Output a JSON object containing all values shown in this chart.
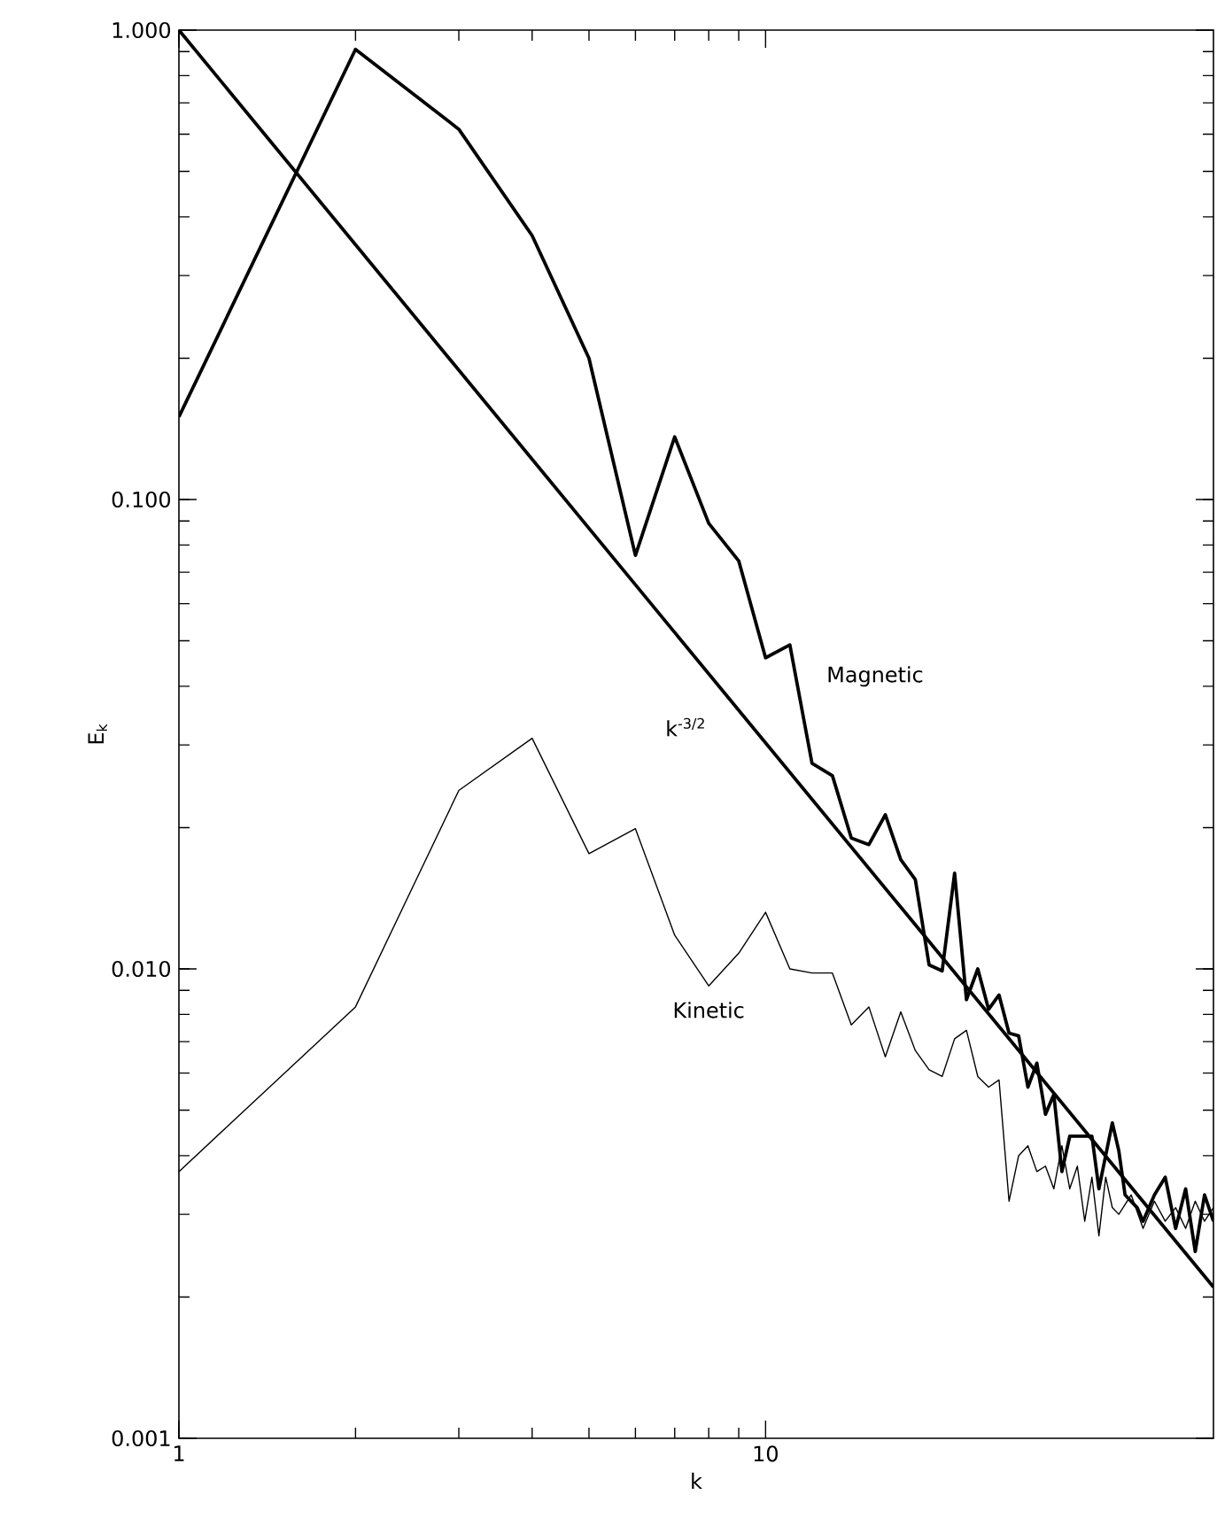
{
  "chart_data": {
    "type": "line",
    "xlabel": "k",
    "ylabel": "E$_{k}$",
    "log": "xy",
    "xlim": [
      1,
      58
    ],
    "ylim": [
      0.001,
      1
    ],
    "xticks": [
      1,
      10
    ],
    "yticks": [
      {
        "value": 0.001,
        "label": "0.001"
      },
      {
        "value": 0.01,
        "label": "0.010"
      },
      {
        "value": 0.1,
        "label": "0.100"
      },
      {
        "value": 1,
        "label": "1.000"
      }
    ],
    "series": [
      {
        "name": "Magnetic",
        "color": "#000000",
        "x": [
          1,
          2,
          3,
          4,
          5,
          6,
          7,
          8,
          9,
          10,
          11,
          12,
          13,
          14,
          15,
          16,
          17,
          18,
          19,
          20,
          21,
          22,
          23,
          24,
          25,
          26,
          27,
          28,
          29,
          30,
          31,
          32,
          33,
          36,
          37,
          39,
          40,
          41,
          43,
          44,
          46,
          48,
          50,
          52,
          54,
          56,
          58
        ],
        "values": [
          0.15,
          0.91,
          0.615,
          0.365,
          0.2,
          0.076,
          0.136,
          0.089,
          0.074,
          0.046,
          0.049,
          0.0274,
          0.0258,
          0.019,
          0.0184,
          0.0213,
          0.0171,
          0.0155,
          0.0102,
          0.0099,
          0.016,
          0.0086,
          0.01,
          0.0082,
          0.0088,
          0.0073,
          0.0072,
          0.0056,
          0.0063,
          0.0049,
          0.0054,
          0.0037,
          0.0044,
          0.0044,
          0.0034,
          0.0047,
          0.0041,
          0.0033,
          0.0031,
          0.0029,
          0.0033,
          0.0036,
          0.0028,
          0.0034,
          0.0025,
          0.0033,
          0.0029
        ]
      },
      {
        "name": "k$^{-3/2}$",
        "color": "#000000",
        "x": [
          1,
          58
        ],
        "values": [
          1.0,
          0.0021
        ]
      },
      {
        "name": "Kinetic",
        "color": "#000000",
        "x": [
          1,
          2,
          3,
          4,
          5,
          6,
          7,
          8,
          9,
          10,
          11,
          12,
          13,
          14,
          15,
          16,
          17,
          18,
          19,
          20,
          21,
          22,
          23,
          24,
          25,
          26,
          27,
          28,
          29,
          30,
          31,
          32,
          33,
          34,
          35,
          36,
          37,
          38,
          39,
          40,
          42,
          44,
          46,
          48,
          50,
          52,
          54,
          56,
          58
        ],
        "values": [
          0.0037,
          0.0083,
          0.024,
          0.031,
          0.0176,
          0.0199,
          0.0118,
          0.0092,
          0.0108,
          0.0132,
          0.01,
          0.0098,
          0.0098,
          0.0076,
          0.0083,
          0.0065,
          0.0081,
          0.0067,
          0.0061,
          0.0059,
          0.0071,
          0.0074,
          0.0059,
          0.0056,
          0.0058,
          0.0032,
          0.004,
          0.0042,
          0.0037,
          0.0038,
          0.0034,
          0.0042,
          0.0034,
          0.0038,
          0.0029,
          0.0036,
          0.0027,
          0.0036,
          0.0031,
          0.003,
          0.0033,
          0.0028,
          0.0032,
          0.0029,
          0.0031,
          0.0028,
          0.0032,
          0.0029,
          0.0031
        ]
      }
    ]
  }
}
